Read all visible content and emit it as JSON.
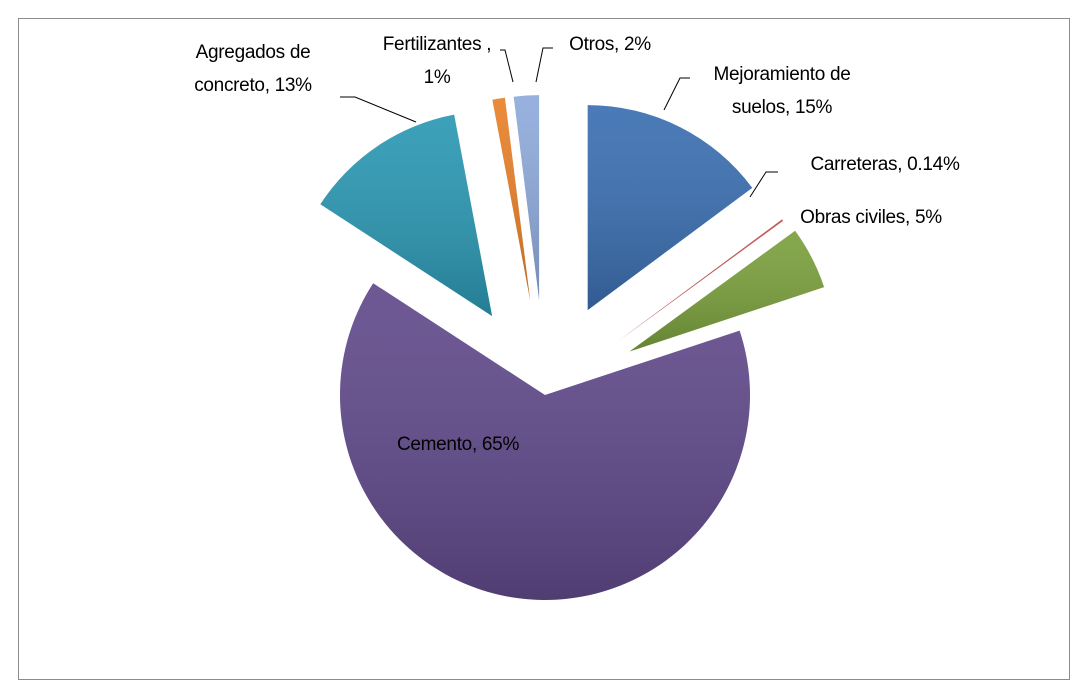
{
  "chart_data": {
    "type": "pie",
    "values": [
      15,
      0.14,
      5,
      65,
      13,
      1,
      2
    ],
    "value_labels": [
      "Mejoramiento de\nsuelos, 15%",
      "Carreteras, 0.14%",
      "Obras civiles, 5%",
      "Cemento, 65%",
      "Agregados de\nconcreto, 13%",
      "Fertilizantes ,\n1%",
      "Otros, 2%"
    ],
    "colors": [
      "#3b6fb1",
      "#c0504d",
      "#7ba03d",
      "#614a8b",
      "#2b98b3",
      "#e8802a",
      "#8eaadb"
    ]
  }
}
